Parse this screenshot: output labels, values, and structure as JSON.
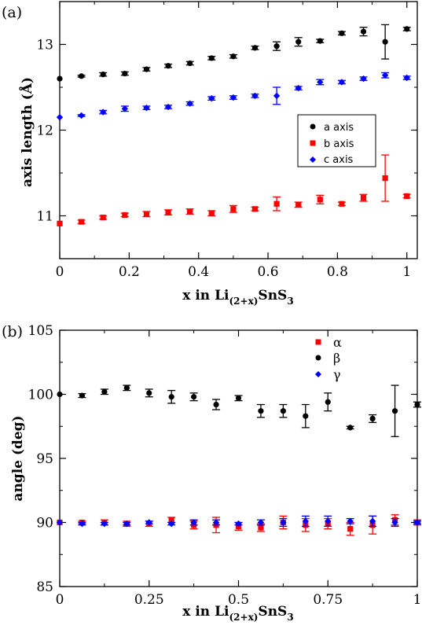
{
  "chart_data": [
    {
      "type": "scatter",
      "panel_label": "(a)",
      "xlabel": {
        "main": "x  in Li",
        "sub": "(2+x)",
        "mid": "SnS",
        "sub2": "3"
      },
      "ylabel": "axis length  (Å)",
      "xlim": [
        0,
        1.03
      ],
      "ylim": [
        10.5,
        13.5
      ],
      "xticks": [
        0,
        0.2,
        0.4,
        0.6,
        0.8,
        1
      ],
      "xtick_labels": [
        "0",
        "0.2",
        "0.4",
        "0.6",
        "0.8",
        "1"
      ],
      "yticks": [
        11,
        12,
        13
      ],
      "ytick_labels": [
        "11",
        "12",
        "13"
      ],
      "legend_position": "center-right",
      "grid": false,
      "series": [
        {
          "name": "a axis",
          "marker": "circle",
          "color": "#000000",
          "x": [
            0,
            0.0625,
            0.125,
            0.1875,
            0.25,
            0.3125,
            0.375,
            0.4375,
            0.5,
            0.5625,
            0.625,
            0.6875,
            0.75,
            0.8125,
            0.875,
            0.9375,
            1.0
          ],
          "y": [
            12.6,
            12.63,
            12.65,
            12.66,
            12.71,
            12.75,
            12.78,
            12.84,
            12.86,
            12.96,
            12.98,
            13.03,
            13.04,
            13.13,
            13.15,
            13.03,
            13.18
          ],
          "err": [
            0,
            0.01,
            0.02,
            0.02,
            0.02,
            0.02,
            0.02,
            0.02,
            0.02,
            0.02,
            0.05,
            0.05,
            0.02,
            0.02,
            0.05,
            0.2,
            0.02
          ]
        },
        {
          "name": "b axis",
          "marker": "square",
          "color": "#ff0000",
          "x": [
            0,
            0.0625,
            0.125,
            0.1875,
            0.25,
            0.3125,
            0.375,
            0.4375,
            0.5,
            0.5625,
            0.625,
            0.6875,
            0.75,
            0.8125,
            0.875,
            0.9375,
            1.0
          ],
          "y": [
            10.91,
            10.93,
            10.98,
            11.01,
            11.02,
            11.04,
            11.05,
            11.03,
            11.08,
            11.08,
            11.14,
            11.13,
            11.19,
            11.14,
            11.21,
            11.44,
            11.23
          ],
          "err": [
            0,
            0.02,
            0.02,
            0.02,
            0.03,
            0.03,
            0.03,
            0.03,
            0.04,
            0.02,
            0.08,
            0.03,
            0.05,
            0.02,
            0.04,
            0.27,
            0.02
          ]
        },
        {
          "name": "c axis",
          "marker": "diamond",
          "color": "#0000ff",
          "x": [
            0,
            0.0625,
            0.125,
            0.1875,
            0.25,
            0.3125,
            0.375,
            0.4375,
            0.5,
            0.5625,
            0.625,
            0.6875,
            0.75,
            0.8125,
            0.875,
            0.9375,
            1.0
          ],
          "y": [
            12.15,
            12.17,
            12.21,
            12.25,
            12.26,
            12.27,
            12.31,
            12.37,
            12.38,
            12.4,
            12.4,
            12.49,
            12.56,
            12.56,
            12.6,
            12.64,
            12.61
          ],
          "err": [
            0,
            0.01,
            0.02,
            0.03,
            0.02,
            0.02,
            0.02,
            0.02,
            0.02,
            0.02,
            0.1,
            0.02,
            0.03,
            0.02,
            0.02,
            0.03,
            0.02
          ]
        }
      ]
    },
    {
      "type": "scatter",
      "panel_label": "(b)",
      "xlabel": {
        "main": "x in Li",
        "sub": "(2+x)",
        "mid": "SnS",
        "sub2": "3"
      },
      "ylabel": "angle  (deg)",
      "xlim": [
        0,
        1.0
      ],
      "ylim": [
        85,
        105
      ],
      "xticks": [
        0,
        0.25,
        0.5,
        0.75,
        1
      ],
      "xtick_labels": [
        "0",
        "0.25",
        "0.5",
        "0.75",
        "1"
      ],
      "yticks": [
        85,
        90,
        95,
        100,
        105
      ],
      "ytick_labels": [
        "85",
        "90",
        "95",
        "100",
        "105"
      ],
      "legend_position": "top-right",
      "grid": false,
      "series": [
        {
          "name": "α",
          "marker": "square",
          "color": "#ff0000",
          "x": [
            0,
            0.0625,
            0.125,
            0.1875,
            0.25,
            0.3125,
            0.375,
            0.4375,
            0.5,
            0.5625,
            0.625,
            0.6875,
            0.75,
            0.8125,
            0.875,
            0.9375,
            1.0
          ],
          "y": [
            90.0,
            90.0,
            90.0,
            89.9,
            89.9,
            90.2,
            89.8,
            89.8,
            89.7,
            89.6,
            90.0,
            89.8,
            89.9,
            89.5,
            89.8,
            90.2,
            90.0
          ],
          "err": [
            0,
            0.1,
            0.2,
            0.2,
            0.2,
            0.2,
            0.3,
            0.6,
            0.3,
            0.3,
            0.5,
            0.5,
            0.4,
            0.5,
            0.7,
            0.4,
            0.2
          ]
        },
        {
          "name": "β",
          "marker": "circle",
          "color": "#000000",
          "x": [
            0,
            0.0625,
            0.125,
            0.1875,
            0.25,
            0.3125,
            0.375,
            0.4375,
            0.5,
            0.5625,
            0.625,
            0.6875,
            0.75,
            0.8125,
            0.875,
            0.9375,
            1.0
          ],
          "y": [
            100.0,
            99.9,
            100.2,
            100.5,
            100.1,
            99.8,
            99.8,
            99.2,
            99.7,
            98.7,
            98.7,
            98.3,
            99.4,
            97.4,
            98.1,
            98.7,
            99.2
          ],
          "err": [
            0,
            0.15,
            0.2,
            0.2,
            0.3,
            0.5,
            0.3,
            0.4,
            0.2,
            0.5,
            0.5,
            0.9,
            0.7,
            0.1,
            0.3,
            2.0,
            0.2
          ]
        },
        {
          "name": "γ",
          "marker": "diamond",
          "color": "#0000ff",
          "x": [
            0,
            0.0625,
            0.125,
            0.1875,
            0.25,
            0.3125,
            0.375,
            0.4375,
            0.5,
            0.5625,
            0.625,
            0.6875,
            0.75,
            0.8125,
            0.875,
            0.9375,
            1.0
          ],
          "y": [
            90.0,
            89.9,
            89.9,
            89.9,
            90.0,
            89.9,
            90.0,
            90.0,
            89.9,
            90.0,
            90.0,
            90.1,
            90.1,
            90.1,
            90.1,
            90.0,
            90.0
          ],
          "err": [
            0,
            0.1,
            0.1,
            0.1,
            0.1,
            0.1,
            0.2,
            0.2,
            0.1,
            0.2,
            0.3,
            0.4,
            0.4,
            0.2,
            0.4,
            0.3,
            0.1
          ]
        }
      ]
    }
  ]
}
